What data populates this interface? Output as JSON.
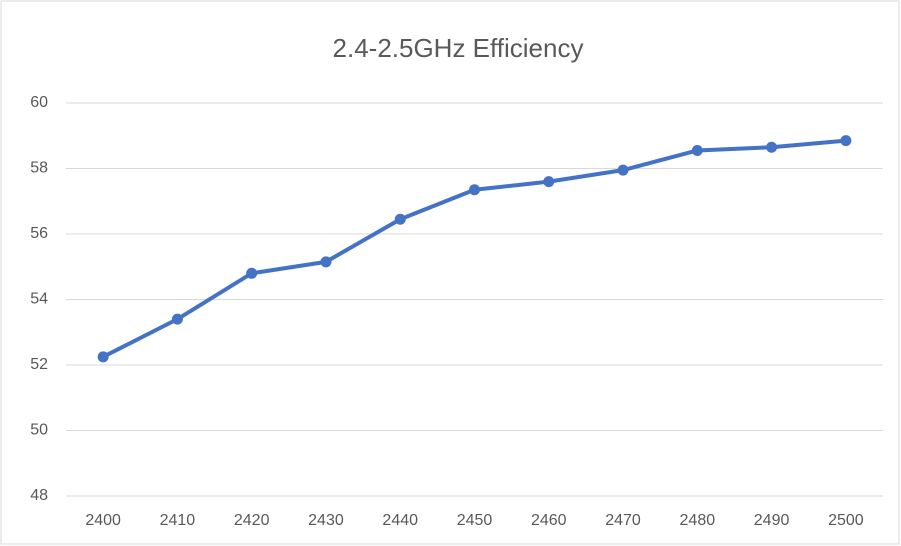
{
  "chart_data": {
    "type": "line",
    "title": "2.4-2.5GHz Efficiency",
    "categories": [
      "2400",
      "2410",
      "2420",
      "2430",
      "2440",
      "2450",
      "2460",
      "2470",
      "2480",
      "2490",
      "2500"
    ],
    "series": [
      {
        "color": "#4472c4",
        "values": [
          52.25,
          53.4,
          54.8,
          55.15,
          56.45,
          57.35,
          57.6,
          57.95,
          58.55,
          58.65,
          58.85
        ]
      }
    ],
    "ylim": [
      48,
      60
    ],
    "yticks": [
      48,
      50,
      52,
      54,
      56,
      58,
      60
    ],
    "grid": true
  }
}
